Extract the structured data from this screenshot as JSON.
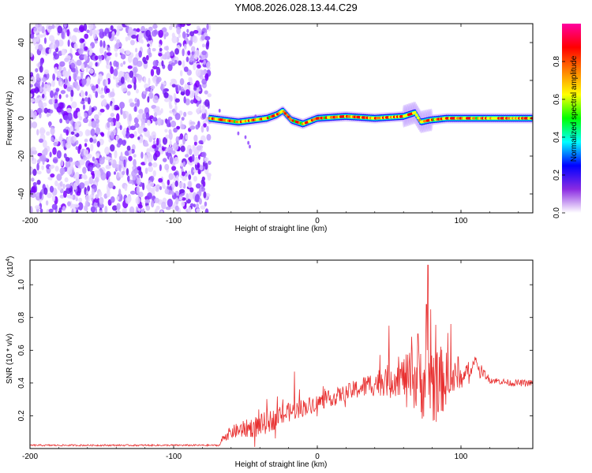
{
  "title": "YM08.2026.028.13.44.C29",
  "chart_data": [
    {
      "type": "heatmap",
      "name": "spectrogram",
      "xlabel": "Height of straight line (km)",
      "ylabel": "Frequency (Hz)",
      "xlim": [
        -200,
        150
      ],
      "ylim": [
        -50,
        50
      ],
      "xticks": [
        "-200",
        "-100",
        "0",
        "100"
      ],
      "yticks": [
        "40",
        "20",
        "0",
        "-20",
        "-40"
      ],
      "colorbar": {
        "label": "Normalized spectral amplitude",
        "range": [
          0,
          1
        ],
        "ticks": [
          "0.0",
          "0.2",
          "0.4",
          "0.6",
          "0.8"
        ],
        "colors": [
          "#ffffff",
          "#8a2be2",
          "#0000ff",
          "#00ffff",
          "#00ff00",
          "#ffff00",
          "#ff8000",
          "#ff0000",
          "#ff00a0"
        ]
      },
      "noise_region_x": [
        -200,
        -75
      ],
      "ridge": {
        "x": [
          -75,
          -65,
          -55,
          -45,
          -35,
          -28,
          -24,
          -18,
          -10,
          0,
          20,
          40,
          60,
          68,
          72,
          78,
          90,
          110,
          150
        ],
        "freq": [
          0,
          -1,
          -2,
          -1,
          0,
          2,
          4,
          -1,
          -3,
          0,
          1,
          0,
          1,
          3,
          -2,
          -1,
          0,
          0,
          0
        ]
      }
    },
    {
      "type": "line",
      "name": "snr",
      "xlabel": "Height of straight line (km)",
      "ylabel": "SNR (10 * v/v)",
      "multiplier": "(x10",
      "multiplier_exp": "4",
      "xlim": [
        -200,
        150
      ],
      "ylim": [
        0,
        1.15
      ],
      "xticks": [
        "-200",
        "-100",
        "0",
        "100"
      ],
      "yticks": [
        "0.2",
        "0.4",
        "0.6",
        "0.8",
        "1.0"
      ],
      "color": "#e83030",
      "envelope": {
        "x": [
          -200,
          -68,
          -66,
          -60,
          -40,
          -20,
          0,
          20,
          40,
          60,
          70,
          80,
          100,
          110,
          120,
          135,
          150
        ],
        "base": [
          0.02,
          0.02,
          0.06,
          0.1,
          0.14,
          0.22,
          0.28,
          0.34,
          0.4,
          0.44,
          0.42,
          0.4,
          0.44,
          0.52,
          0.42,
          0.4,
          0.4
        ],
        "noise": [
          0.005,
          0.005,
          0.02,
          0.04,
          0.07,
          0.06,
          0.05,
          0.05,
          0.08,
          0.12,
          0.22,
          0.28,
          0.06,
          0.04,
          0.02,
          0.02,
          0.02
        ]
      },
      "spikes": [
        {
          "x": 77,
          "y": 1.12
        },
        {
          "x": 76,
          "y": 0.88
        },
        {
          "x": 79,
          "y": 0.85
        },
        {
          "x": 50,
          "y": 0.75
        },
        {
          "x": -16,
          "y": 0.47
        },
        {
          "x": 93,
          "y": 0.76
        },
        {
          "x": 98,
          "y": 0.56
        },
        {
          "x": 70,
          "y": 0.7
        }
      ]
    }
  ]
}
